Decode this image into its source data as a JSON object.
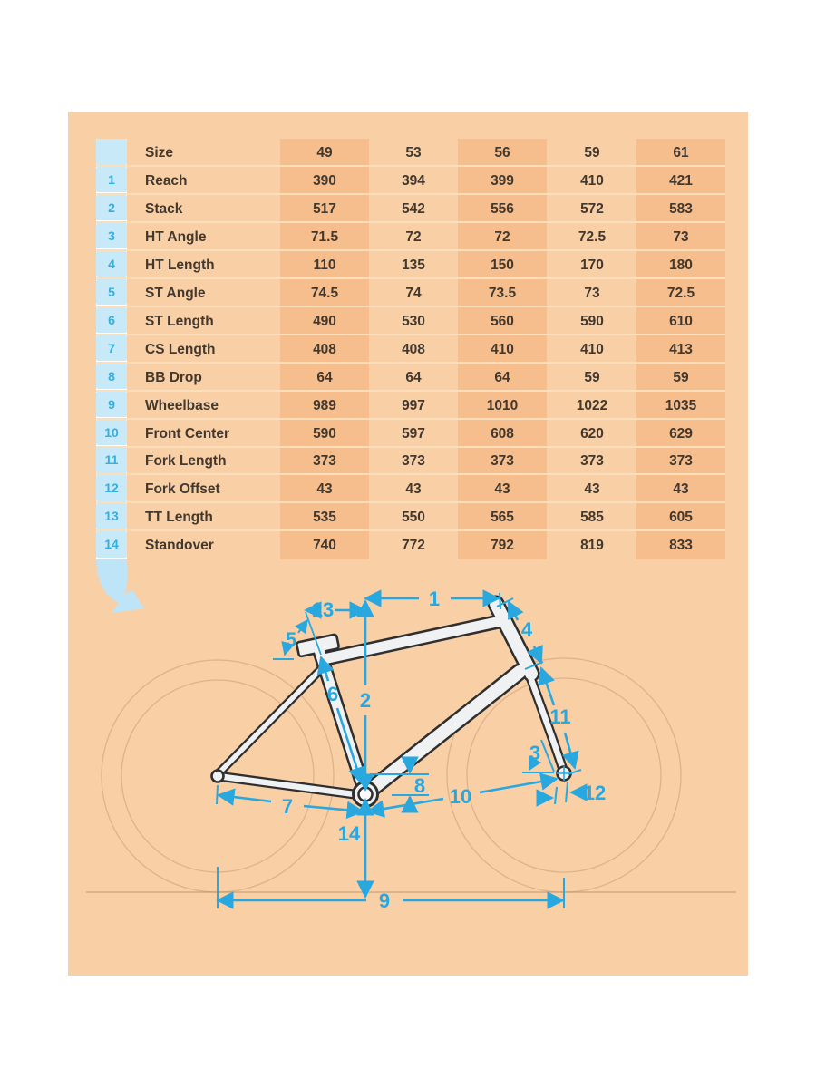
{
  "table": {
    "rows": [
      {
        "num": "",
        "label": "Size",
        "values": [
          "49",
          "53",
          "56",
          "59",
          "61"
        ]
      },
      {
        "num": "1",
        "label": "Reach",
        "values": [
          "390",
          "394",
          "399",
          "410",
          "421"
        ]
      },
      {
        "num": "2",
        "label": "Stack",
        "values": [
          "517",
          "542",
          "556",
          "572",
          "583"
        ]
      },
      {
        "num": "3",
        "label": "HT Angle",
        "values": [
          "71.5",
          "72",
          "72",
          "72.5",
          "73"
        ]
      },
      {
        "num": "4",
        "label": "HT Length",
        "values": [
          "110",
          "135",
          "150",
          "170",
          "180"
        ]
      },
      {
        "num": "5",
        "label": "ST Angle",
        "values": [
          "74.5",
          "74",
          "73.5",
          "73",
          "72.5"
        ]
      },
      {
        "num": "6",
        "label": "ST Length",
        "values": [
          "490",
          "530",
          "560",
          "590",
          "610"
        ]
      },
      {
        "num": "7",
        "label": "CS Length",
        "values": [
          "408",
          "408",
          "410",
          "410",
          "413"
        ]
      },
      {
        "num": "8",
        "label": "BB Drop",
        "values": [
          "64",
          "64",
          "64",
          "59",
          "59"
        ]
      },
      {
        "num": "9",
        "label": "Wheelbase",
        "values": [
          "989",
          "997",
          "1010",
          "1022",
          "1035"
        ]
      },
      {
        "num": "10",
        "label": "Front Center",
        "values": [
          "590",
          "597",
          "608",
          "620",
          "629"
        ]
      },
      {
        "num": "11",
        "label": "Fork Length",
        "values": [
          "373",
          "373",
          "373",
          "373",
          "373"
        ]
      },
      {
        "num": "12",
        "label": "Fork Offset",
        "values": [
          "43",
          "43",
          "43",
          "43",
          "43"
        ]
      },
      {
        "num": "13",
        "label": "TT Length",
        "values": [
          "535",
          "550",
          "565",
          "585",
          "605"
        ]
      },
      {
        "num": "14",
        "label": "Standover",
        "values": [
          "740",
          "772",
          "792",
          "819",
          "833"
        ]
      }
    ]
  },
  "diagram": {
    "dimension_labels": [
      "1",
      "2",
      "3",
      "4",
      "5",
      "6",
      "7",
      "8",
      "9",
      "10",
      "11",
      "12",
      "13",
      "14"
    ]
  },
  "colors": {
    "panel_background": "#F9CFA6",
    "column_stripe": "#F6BE8D",
    "blue_cell": "#C8E9F8",
    "blue_number_text": "#35AEE2",
    "dark_text": "#43382E",
    "row_divider": "#FBDFBC",
    "dimension_cyan": "#29A8E0",
    "frame_fill": "#EFF1F2",
    "frame_outline": "#2F2F2F",
    "arrow_blue": "#BEE5F7"
  }
}
